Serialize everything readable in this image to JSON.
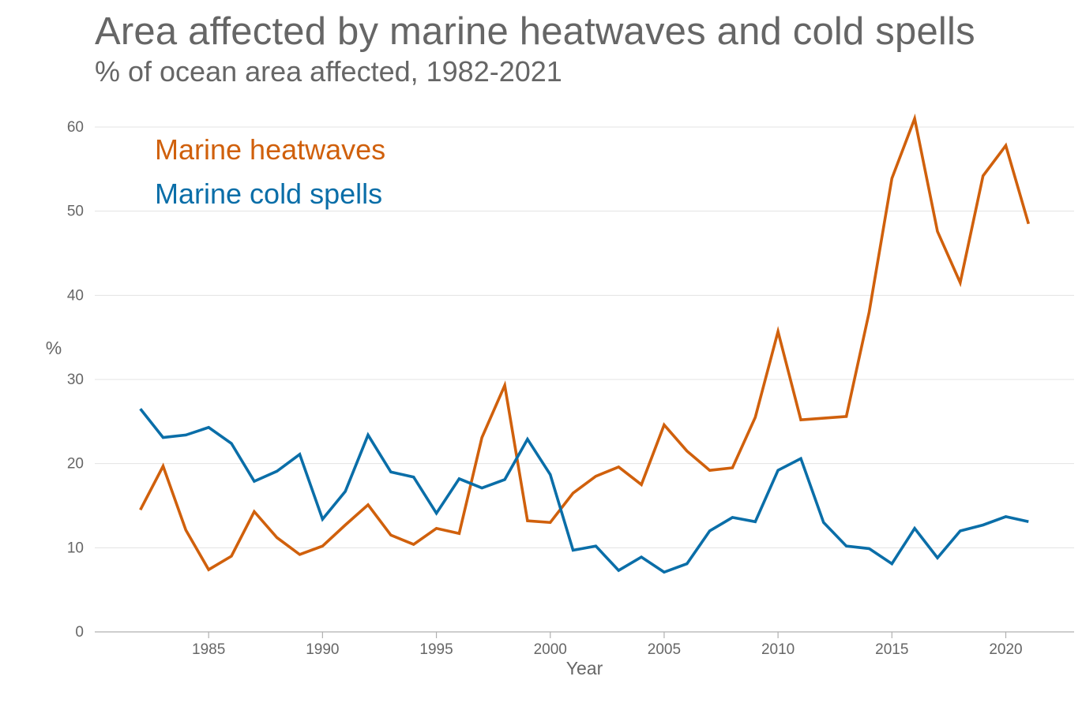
{
  "chart_data": {
    "type": "line",
    "title": "Area affected by marine heatwaves and cold spells",
    "subtitle": "% of ocean area affected, 1982-2021",
    "xlabel": "Year",
    "ylabel": "%",
    "xlim": [
      1980,
      2023
    ],
    "ylim": [
      0,
      60
    ],
    "x_ticks": [
      1985,
      1990,
      1995,
      2000,
      2005,
      2010,
      2015,
      2020
    ],
    "y_ticks": [
      0,
      10,
      20,
      30,
      40,
      50,
      60
    ],
    "grid": "horizontal",
    "legend_position": "top-left",
    "x": [
      1982,
      1983,
      1984,
      1985,
      1986,
      1987,
      1988,
      1989,
      1990,
      1991,
      1992,
      1993,
      1994,
      1995,
      1996,
      1997,
      1998,
      1999,
      2000,
      2001,
      2002,
      2003,
      2004,
      2005,
      2006,
      2007,
      2008,
      2009,
      2010,
      2011,
      2012,
      2013,
      2014,
      2015,
      2016,
      2017,
      2018,
      2019,
      2020,
      2021
    ],
    "series": [
      {
        "name": "Marine heatwaves",
        "color": "#d0600c",
        "values": [
          14.5,
          19.7,
          12.1,
          7.4,
          9.0,
          14.3,
          11.2,
          9.2,
          10.2,
          12.7,
          15.1,
          11.5,
          10.4,
          12.3,
          11.7,
          23.1,
          29.3,
          13.2,
          13.0,
          16.5,
          18.5,
          19.6,
          17.5,
          24.6,
          21.5,
          19.2,
          19.5,
          25.5,
          35.7,
          25.2,
          25.4,
          25.6,
          38.0,
          53.9,
          61.0,
          47.6,
          41.5,
          54.2,
          57.8,
          48.5
        ]
      },
      {
        "name": "Marine cold spells",
        "color": "#0a6ea8",
        "values": [
          26.5,
          23.1,
          23.4,
          24.3,
          22.4,
          17.9,
          19.1,
          21.1,
          13.4,
          16.7,
          23.4,
          19.0,
          18.4,
          14.1,
          18.2,
          17.1,
          18.1,
          22.9,
          18.7,
          9.7,
          10.2,
          7.3,
          8.9,
          7.1,
          8.1,
          12.0,
          13.6,
          13.1,
          19.2,
          20.6,
          13.0,
          10.2,
          9.9,
          8.1,
          12.3,
          8.8,
          12.0,
          12.7,
          13.7,
          13.1
        ]
      }
    ]
  }
}
